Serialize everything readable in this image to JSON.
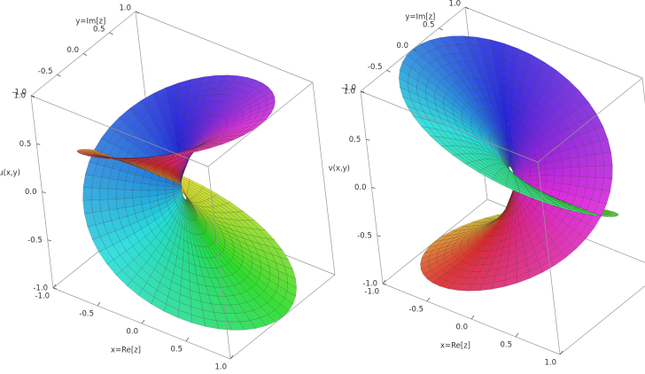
{
  "chart_data": [
    {
      "type": "surface",
      "xlabel": "x=Re[z]",
      "ylabel": "y=Im[z]",
      "zlabel": "u(x,y)",
      "xlim": [
        -1,
        1
      ],
      "ylim": [
        -1,
        1
      ],
      "zlim": [
        -1,
        1
      ],
      "xticks": [
        {
          "value": -1,
          "label": "-1.0"
        },
        -0.5,
        {
          "value": 0,
          "label": "0.0"
        },
        0.5,
        {
          "value": 1,
          "label": "1.0"
        }
      ],
      "yticks": [
        {
          "value": -1,
          "label": "-1.0"
        },
        -0.5,
        {
          "value": 0,
          "label": "0.0"
        },
        0.5,
        {
          "value": 1,
          "label": "1.0"
        }
      ],
      "zticks": [
        {
          "value": -1,
          "label": "-1.0"
        },
        -0.5,
        {
          "value": 0,
          "label": "0.0"
        },
        0.5,
        {
          "value": 1,
          "label": "1.0"
        }
      ]
    },
    {
      "type": "surface",
      "xlabel": "x=Re[z]",
      "ylabel": "y=Im[z]",
      "zlabel": "v(x,y)",
      "xlim": [
        -1,
        1
      ],
      "ylim": [
        -1,
        1
      ],
      "zlim": [
        -1,
        1
      ],
      "xticks": [
        {
          "value": -1,
          "label": "-1.0"
        },
        -0.5,
        {
          "value": 0,
          "label": "0.0"
        },
        0.5,
        {
          "value": 1,
          "label": "1.0"
        }
      ],
      "yticks": [
        {
          "value": -1,
          "label": "-1.0"
        },
        -0.5,
        {
          "value": 0,
          "label": "0.0"
        },
        0.5,
        {
          "value": 1,
          "label": "1.0"
        }
      ],
      "zticks": [
        {
          "value": -1,
          "label": "-1.0"
        },
        -0.5,
        {
          "value": 0,
          "label": "0.0"
        },
        0.5,
        {
          "value": 1,
          "label": "1.0"
        }
      ]
    }
  ]
}
